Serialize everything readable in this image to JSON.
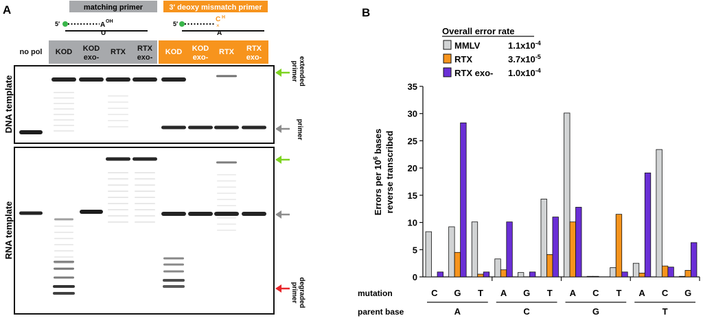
{
  "panel_a": {
    "label": "A",
    "header_matching": "matching primer",
    "header_mismatch": "3′ deoxy mismatch primer",
    "diagram_5prime": "5′",
    "diagram_matching_top": "A",
    "diagram_matching_sup": "OH",
    "diagram_matching_bottom": "U",
    "diagram_mismatch_top": "C",
    "diagram_mismatch_sup": "H",
    "diagram_mismatch_bottom": "A",
    "lanes": [
      {
        "line1": "no pol",
        "line2": ""
      },
      {
        "line1": "KOD",
        "line2": ""
      },
      {
        "line1": "KOD",
        "line2": "exo-"
      },
      {
        "line1": "RTX",
        "line2": ""
      },
      {
        "line1": "RTX",
        "line2": "exo-"
      },
      {
        "line1": "KOD",
        "line2": ""
      },
      {
        "line1": "KOD",
        "line2": "exo-"
      },
      {
        "line1": "RTX",
        "line2": ""
      },
      {
        "line1": "RTX",
        "line2": "exo-"
      }
    ],
    "dna_template_label": "DNA template",
    "rna_template_label": "RNA template",
    "arrow_labels": {
      "extended_1": "extended",
      "extended_2": "primer",
      "primer": "primer",
      "degraded_1": "degraded",
      "degraded_2": "primer"
    },
    "colors": {
      "gray_header": "#a7a9ac",
      "orange_header": "#f7941d",
      "green_arrow": "#7ed321",
      "gray_arrow": "#8c8c8c",
      "red_arrow": "#e8262b"
    }
  },
  "panel_b": {
    "label": "B",
    "legend_title": "Overall error rate",
    "legend": [
      {
        "name": "MMLV",
        "rate": "1.1x10",
        "exp": "-4",
        "color": "#d1d3d4"
      },
      {
        "name": "RTX",
        "rate": "3.7x10",
        "exp": "-5",
        "color": "#f7941d"
      },
      {
        "name": "RTX exo-",
        "rate": "1.0x10",
        "exp": "-4",
        "color": "#6a2fd6"
      }
    ],
    "ylabel_1a": "Errors per 10",
    "ylabel_1sup": "6",
    "ylabel_1b": " bases",
    "ylabel_2": "reverse transcribed",
    "mutation_label": "mutation",
    "parent_label": "parent base"
  },
  "chart_data": {
    "type": "bar",
    "ylim": [
      0,
      35
    ],
    "yticks": [
      "0",
      "5",
      "10",
      "15",
      "20",
      "25",
      "30",
      "35"
    ],
    "groups": [
      {
        "parent": "A",
        "mutations": [
          "C",
          "G",
          "T"
        ]
      },
      {
        "parent": "C",
        "mutations": [
          "A",
          "G",
          "T"
        ]
      },
      {
        "parent": "G",
        "mutations": [
          "A",
          "C",
          "T"
        ]
      },
      {
        "parent": "T",
        "mutations": [
          "A",
          "C",
          "G"
        ]
      }
    ],
    "series": [
      {
        "name": "MMLV",
        "values": [
          8.3,
          9.2,
          10.1,
          3.3,
          0.8,
          14.3,
          30.1,
          0.1,
          1.7,
          2.5,
          23.4,
          0.1
        ]
      },
      {
        "name": "RTX",
        "values": [
          0,
          4.5,
          0.5,
          1.3,
          0,
          4.1,
          10.1,
          0.1,
          11.5,
          0.7,
          2.0,
          1.2
        ]
      },
      {
        "name": "RTX exo-",
        "values": [
          0.9,
          28.3,
          0.9,
          10.1,
          0.9,
          11.0,
          12.8,
          0,
          0.9,
          19.1,
          1.8,
          6.3
        ]
      }
    ]
  }
}
